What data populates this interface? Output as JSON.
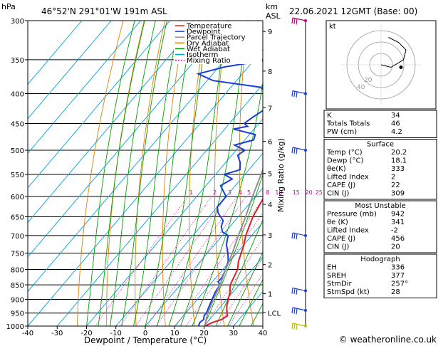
{
  "header": {
    "p_unit": "hPa",
    "location": "46°52'N  291°01'W  191m  ASL",
    "km_unit": "km",
    "asl_unit": "ASL",
    "datetime": "22.06.2021  12GMT  (Base: 00)"
  },
  "axes": {
    "xlabel": "Dewpoint / Temperature (°C)",
    "mixing_ratio_label": "Mixing Ratio (g/kg)",
    "pressure_ticks": [
      300,
      350,
      400,
      450,
      500,
      550,
      600,
      650,
      700,
      750,
      800,
      850,
      900,
      950,
      1000
    ],
    "temp_ticks": [
      -40,
      -30,
      -20,
      -10,
      0,
      10,
      20,
      30,
      40
    ],
    "km_ticks": [
      {
        "label": "9",
        "p": 313
      },
      {
        "label": "8",
        "p": 366
      },
      {
        "label": "7",
        "p": 423
      },
      {
        "label": "6",
        "p": 483
      },
      {
        "label": "5",
        "p": 548
      },
      {
        "label": "4",
        "p": 619
      },
      {
        "label": "3",
        "p": 698
      },
      {
        "label": "2",
        "p": 785
      },
      {
        "label": "1",
        "p": 880
      },
      {
        "label": "LCL",
        "p": 949
      }
    ],
    "mixing_ratio_values": [
      "1",
      "2",
      "3",
      "4",
      "5",
      "8",
      "10",
      "15",
      "20",
      "25"
    ]
  },
  "legend": [
    {
      "label": "Temperature",
      "color": "#e02020"
    },
    {
      "label": "Dewpoint",
      "color": "#1a3fd6"
    },
    {
      "label": "Parcel Trajectory",
      "color": "#909090"
    },
    {
      "label": "Dry Adiabat",
      "color": "#e08000"
    },
    {
      "label": "Wet Adiabat",
      "color": "#00a000"
    },
    {
      "label": "Isotherm",
      "color": "#00a0e0"
    },
    {
      "label": "Mixing Ratio",
      "color": "#e000a0"
    }
  ],
  "chart_data": {
    "type": "line",
    "skew_factor": 0.85,
    "xlim": [
      -40,
      40
    ],
    "ylim": [
      1000,
      300
    ],
    "series": [
      {
        "name": "Temperature",
        "color": "#e02020",
        "points": [
          [
            1000,
            20.2
          ],
          [
            985,
            22
          ],
          [
            975,
            24
          ],
          [
            960,
            25
          ],
          [
            950,
            24
          ],
          [
            925,
            22
          ],
          [
            900,
            20.5
          ],
          [
            875,
            19
          ],
          [
            850,
            17
          ],
          [
            825,
            16
          ],
          [
            800,
            15
          ],
          [
            775,
            13
          ],
          [
            750,
            11.5
          ],
          [
            725,
            10
          ],
          [
            700,
            8
          ],
          [
            675,
            6.5
          ],
          [
            650,
            5
          ],
          [
            625,
            4
          ],
          [
            600,
            3
          ],
          [
            575,
            0
          ],
          [
            550,
            -1
          ],
          [
            525,
            -3
          ],
          [
            500,
            -5.5
          ],
          [
            475,
            -8
          ],
          [
            450,
            -10
          ],
          [
            425,
            -13
          ],
          [
            400,
            -15
          ],
          [
            375,
            -18
          ],
          [
            350,
            -21
          ],
          [
            325,
            -24
          ],
          [
            300,
            -28
          ]
        ]
      },
      {
        "name": "Dewpoint",
        "color": "#1a3fd6",
        "points": [
          [
            1000,
            18.1
          ],
          [
            985,
            17.5
          ],
          [
            975,
            18
          ],
          [
            960,
            17
          ],
          [
            950,
            17
          ],
          [
            925,
            16
          ],
          [
            900,
            15
          ],
          [
            875,
            14
          ],
          [
            850,
            13.5
          ],
          [
            840,
            12
          ],
          [
            825,
            12
          ],
          [
            800,
            11
          ],
          [
            775,
            9.5
          ],
          [
            750,
            7
          ],
          [
            725,
            4
          ],
          [
            700,
            2
          ],
          [
            690,
            -1
          ],
          [
            675,
            -3
          ],
          [
            660,
            -4
          ],
          [
            650,
            -6
          ],
          [
            640,
            -8
          ],
          [
            625,
            -10
          ],
          [
            600,
            -10
          ],
          [
            590,
            -12
          ],
          [
            575,
            -15
          ],
          [
            560,
            -13
          ],
          [
            550,
            -17
          ],
          [
            540,
            -13
          ],
          [
            525,
            -15
          ],
          [
            510,
            -18
          ],
          [
            500,
            -17
          ],
          [
            490,
            -22
          ],
          [
            480,
            -17
          ],
          [
            470,
            -18
          ],
          [
            460,
            -27
          ],
          [
            455,
            -23
          ],
          [
            450,
            -25
          ],
          [
            440,
            -24
          ],
          [
            425,
            -22
          ],
          [
            410,
            -23
          ],
          [
            400,
            -25
          ],
          [
            390,
            -30
          ],
          [
            380,
            -48
          ],
          [
            370,
            -55
          ],
          [
            360,
            -48
          ],
          [
            350,
            -35
          ],
          [
            330,
            -34
          ],
          [
            310,
            -35
          ],
          [
            300,
            -35
          ]
        ]
      },
      {
        "name": "Parcel Trajectory",
        "color": "#909090",
        "points": [
          [
            1000,
            20.2
          ],
          [
            950,
            17.5
          ],
          [
            900,
            15.5
          ],
          [
            850,
            13.5
          ],
          [
            800,
            11
          ],
          [
            750,
            8.5
          ],
          [
            700,
            5.5
          ],
          [
            650,
            2.5
          ],
          [
            600,
            -1
          ],
          [
            550,
            -4.5
          ],
          [
            500,
            -8.5
          ],
          [
            450,
            -13
          ],
          [
            400,
            -18.5
          ],
          [
            350,
            -25
          ],
          [
            300,
            -33
          ]
        ]
      }
    ]
  },
  "wind_barbs": [
    300,
    400,
    500,
    700,
    870,
    940,
    1000
  ],
  "hodograph": {
    "label": "kt",
    "ring_labels": [
      "20",
      "40"
    ],
    "trace": [
      [
        0,
        0
      ],
      [
        4,
        -1
      ],
      [
        9,
        2
      ],
      [
        10,
        6
      ],
      [
        7,
        9
      ],
      [
        3,
        11
      ]
    ],
    "storm": [
      8,
      -1
    ]
  },
  "stats": {
    "top": [
      {
        "label": "K",
        "value": "34"
      },
      {
        "label": "Totals Totals",
        "value": "46"
      },
      {
        "label": "PW (cm)",
        "value": "4.2"
      }
    ],
    "surface_title": "Surface",
    "surface": [
      {
        "label": "Temp (°C)",
        "value": "20.2"
      },
      {
        "label": "Dewp (°C)",
        "value": "18.1"
      },
      {
        "label": "θe(K)",
        "value": "333"
      },
      {
        "label": "Lifted Index",
        "value": "2"
      },
      {
        "label": "CAPE (J)",
        "value": "22"
      },
      {
        "label": "CIN (J)",
        "value": "309"
      }
    ],
    "mu_title": "Most Unstable",
    "mu": [
      {
        "label": "Pressure (mb)",
        "value": "942"
      },
      {
        "label": "θe (K)",
        "value": "341"
      },
      {
        "label": "Lifted Index",
        "value": "-2"
      },
      {
        "label": "CAPE (J)",
        "value": "456"
      },
      {
        "label": "CIN (J)",
        "value": "20"
      }
    ],
    "hodo_title": "Hodograph",
    "hodo": [
      {
        "label": "EH",
        "value": "336"
      },
      {
        "label": "SREH",
        "value": "377"
      },
      {
        "label": "StmDir",
        "value": "257°"
      },
      {
        "label": "StmSpd (kt)",
        "value": "28"
      }
    ]
  },
  "copyright": "© weatheronline.co.uk"
}
